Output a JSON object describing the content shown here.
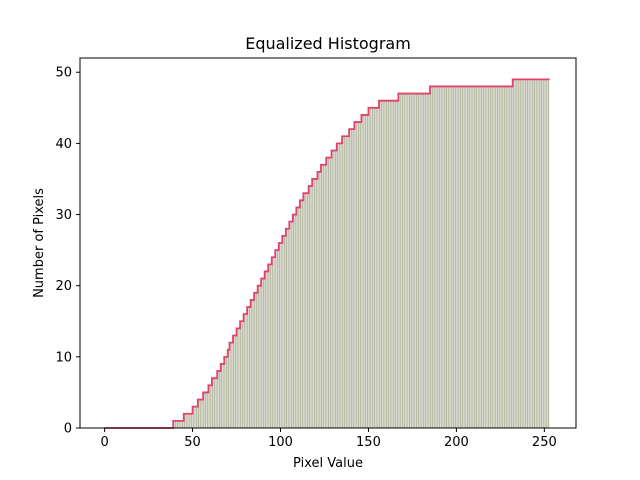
{
  "chart_data": {
    "type": "bar",
    "title": "Equalized Histogram",
    "xlabel": "Pixel Value",
    "ylabel": "Number of Pixels",
    "xlim": [
      -14,
      268
    ],
    "ylim": [
      0,
      52
    ],
    "xticks": [
      0,
      50,
      100,
      150,
      200,
      250
    ],
    "yticks": [
      0,
      10,
      20,
      30,
      40,
      50
    ],
    "grid": false,
    "bar_color": "#b8bba5",
    "line_color": "#e0436b",
    "series": [
      {
        "bins_start": 0,
        "bin_width": 1,
        "values": [
          0,
          0,
          0,
          0,
          0,
          0,
          0,
          0,
          0,
          0,
          0,
          0,
          0,
          0,
          0,
          0,
          0,
          0,
          0,
          0,
          0,
          0,
          0,
          0,
          0,
          0,
          0,
          0,
          0,
          0,
          0,
          0,
          0,
          0,
          0,
          0,
          0,
          0,
          0,
          1,
          1,
          1,
          1,
          1,
          1,
          2,
          2,
          2,
          2,
          2,
          3,
          3,
          3,
          4,
          4,
          4,
          5,
          5,
          5,
          6,
          6,
          7,
          7,
          7,
          8,
          8,
          9,
          9,
          10,
          10,
          11,
          12,
          12,
          13,
          13,
          14,
          14,
          15,
          15,
          16,
          16,
          17,
          17,
          18,
          18,
          19,
          19,
          20,
          20,
          21,
          21,
          22,
          22,
          23,
          23,
          24,
          24,
          25,
          25,
          26,
          26,
          27,
          27,
          28,
          28,
          29,
          29,
          30,
          30,
          31,
          31,
          32,
          32,
          33,
          33,
          33,
          34,
          34,
          35,
          35,
          35,
          36,
          36,
          37,
          37,
          37,
          38,
          38,
          38,
          39,
          39,
          39,
          40,
          40,
          40,
          41,
          41,
          41,
          41,
          42,
          42,
          42,
          43,
          43,
          43,
          43,
          44,
          44,
          44,
          44,
          45,
          45,
          45,
          45,
          45,
          45,
          46,
          46,
          46,
          46,
          46,
          46,
          46,
          46,
          46,
          46,
          46,
          47,
          47,
          47,
          47,
          47,
          47,
          47,
          47,
          47,
          47,
          47,
          47,
          47,
          47,
          47,
          47,
          47,
          47,
          48,
          48,
          48,
          48,
          48,
          48,
          48,
          48,
          48,
          48,
          48,
          48,
          48,
          48,
          48,
          48,
          48,
          48,
          48,
          48,
          48,
          48,
          48,
          48,
          48,
          48,
          48,
          48,
          48,
          48,
          48,
          48,
          48,
          48,
          48,
          48,
          48,
          48,
          48,
          48,
          48,
          48,
          48,
          48,
          48,
          48,
          48,
          49,
          49,
          49,
          49,
          49,
          49,
          49,
          49,
          49,
          49,
          49,
          49,
          49,
          49,
          49,
          49,
          49,
          49,
          49,
          49,
          49
        ]
      }
    ]
  }
}
